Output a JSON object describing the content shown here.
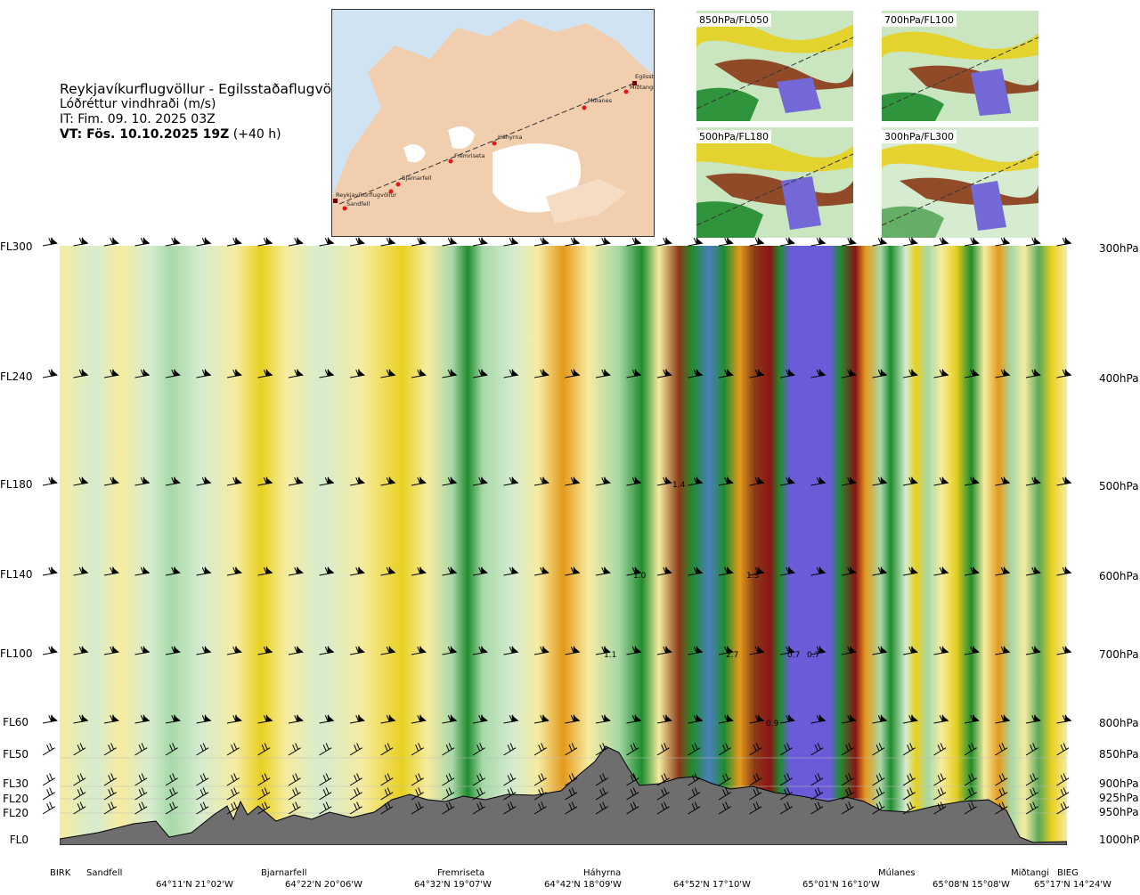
{
  "header": {
    "route": "Reykjavíkurflugvöllur - Egilsstaðaflugvöllur",
    "parameter": "Lóðréttur vindhraði (m/s)",
    "init_time": "IT: Fim. 09. 10. 2025 03Z",
    "valid_time_bold": "VT: Fös. 10.10.2025 19Z",
    "valid_time_offset": "(+40 h)"
  },
  "map": {
    "waypoints": [
      "Reykjavíkurflugvöllur",
      "Sandfell",
      "Bjarnarfell",
      "Fremriseta",
      "Háhyrna",
      "Múlanes",
      "Egilsst",
      "Miðtangi"
    ]
  },
  "thumbnails": [
    {
      "label": "850hPa/FL050"
    },
    {
      "label": "700hPa/FL100"
    },
    {
      "label": "500hPa/FL180"
    },
    {
      "label": "300hPa/FL300"
    }
  ],
  "chart_data": {
    "type": "heatmap",
    "title": "Lóðréttur vindhraði (m/s)",
    "left_axis_levels": [
      "FL300",
      "FL240",
      "FL180",
      "FL140",
      "FL100",
      "FL60",
      "FL50",
      "FL30",
      "FL20",
      "FL20",
      "FL0"
    ],
    "right_axis_levels": [
      "300hPa",
      "400hPa",
      "500hPa",
      "600hPa",
      "700hPa",
      "800hPa",
      "850hPa",
      "900hPa",
      "925hPa",
      "950hPa",
      "1000hPa"
    ],
    "waypoints": [
      "BIRK",
      "Sandfell",
      "Bjarnarfell",
      "Fremriseta",
      "Háhyrna",
      "Múlanes",
      "Miðtangi",
      "BIEG"
    ],
    "coordinates": [
      "64°11'N 21°02'W",
      "64°22'N 20°06'W",
      "64°32'N 19°07'W",
      "64°42'N 18°09'W",
      "64°52'N 17°10'W",
      "65°01'N 16°10'W",
      "65°08'N 15°08'W",
      "65°17'N 14°24'W"
    ],
    "annotations": [
      "1.4",
      "1.0",
      "1.3",
      "1.1",
      "2.7",
      "0.7",
      "0.7",
      "0.9"
    ],
    "colors": {
      "strong_down": "#6a5bd8",
      "down": "#4a7fbf",
      "dark_green": "#1f8c2e",
      "green": "#5aa85a",
      "light_green": "#a8d8a8",
      "pale_green": "#d5ecd0",
      "pale_yellow": "#f6eca0",
      "yellow": "#e8d020",
      "orange": "#e49a1c",
      "dark_orange": "#c8701a",
      "brown": "#8a3a18",
      "dark_red": "#8a1414",
      "terrain": "#6e6e6e"
    }
  }
}
